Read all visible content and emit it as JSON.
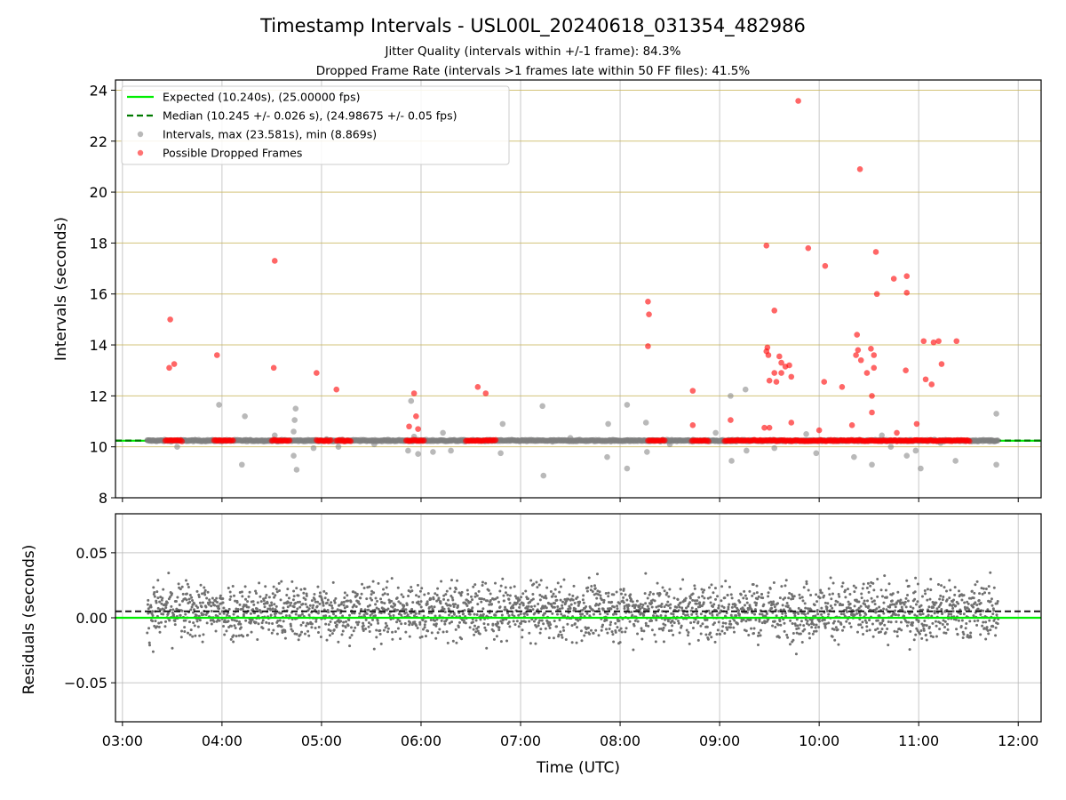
{
  "title": "Timestamp Intervals - USL00L_20240618_031354_482986",
  "subtitle_1": "Jitter Quality (intervals within +/-1 frame): 84.3%",
  "subtitle_2": "Dropped Frame Rate (intervals >1 frames late within 50 FF files): 41.5%",
  "colors": {
    "expected": "#00ee00",
    "median": "#007a00",
    "intervals": "#808080",
    "dropped": "#ff0000",
    "hgrid_top": "#c8b458",
    "grid": "#b0b0b0"
  },
  "chart_data": [
    {
      "type": "scatter",
      "panel": "top",
      "ylabel": "Intervals (seconds)",
      "ylim": [
        8,
        24.4
      ],
      "yticks": [
        8,
        10,
        12,
        14,
        16,
        18,
        20,
        22,
        24
      ],
      "xlim_hours": [
        2.93,
        12.23
      ],
      "grid": true,
      "legend_placement": "upper-left",
      "legend": [
        "Expected (10.240s), (25.00000 fps)",
        "Median (10.245 +/- 0.026 s), (24.98675 +/- 0.05 fps)",
        "Intervals, max (23.581s), min (8.869s)",
        "Possible Dropped Frames"
      ],
      "expected_interval": 10.24,
      "median_interval": 10.245,
      "baseline_range_hours": [
        3.25,
        11.8
      ],
      "dropped_segments_hours": [
        [
          3.43,
          3.6
        ],
        [
          3.92,
          4.12
        ],
        [
          4.5,
          4.68
        ],
        [
          4.95,
          5.1
        ],
        [
          5.15,
          5.3
        ],
        [
          5.85,
          6.03
        ],
        [
          6.45,
          6.75
        ],
        [
          8.28,
          8.45
        ],
        [
          8.72,
          8.9
        ],
        [
          9.05,
          11.52
        ]
      ],
      "series": [
        {
          "name": "Intervals, max (23.581s), min (8.869s)",
          "points": [
            [
              3.97,
              11.65
            ],
            [
              4.23,
              11.2
            ],
            [
              4.2,
              9.3
            ],
            [
              4.53,
              10.45
            ],
            [
              4.72,
              9.65
            ],
            [
              4.72,
              10.6
            ],
            [
              4.73,
              11.05
            ],
            [
              4.74,
              11.5
            ],
            [
              4.75,
              9.1
            ],
            [
              4.92,
              9.95
            ],
            [
              5.17,
              10.0
            ],
            [
              5.53,
              10.1
            ],
            [
              5.87,
              9.85
            ],
            [
              5.9,
              11.8
            ],
            [
              5.97,
              9.72
            ],
            [
              5.93,
              10.4
            ],
            [
              6.12,
              9.8
            ],
            [
              6.22,
              10.55
            ],
            [
              6.3,
              9.85
            ],
            [
              6.8,
              9.75
            ],
            [
              6.82,
              10.9
            ],
            [
              7.23,
              8.87
            ],
            [
              7.22,
              11.6
            ],
            [
              7.32,
              10.2
            ],
            [
              7.87,
              9.6
            ],
            [
              7.88,
              10.9
            ],
            [
              8.07,
              9.15
            ],
            [
              8.07,
              11.65
            ],
            [
              8.26,
              10.95
            ],
            [
              8.27,
              9.8
            ],
            [
              8.73,
              10.2
            ],
            [
              8.96,
              10.55
            ],
            [
              9.11,
              12.0
            ],
            [
              9.12,
              9.45
            ],
            [
              9.26,
              12.25
            ],
            [
              9.27,
              9.85
            ],
            [
              9.55,
              9.95
            ],
            [
              9.87,
              10.5
            ],
            [
              9.97,
              9.75
            ],
            [
              10.35,
              9.6
            ],
            [
              10.53,
              9.3
            ],
            [
              10.63,
              10.45
            ],
            [
              10.72,
              10.0
            ],
            [
              10.88,
              9.65
            ],
            [
              10.97,
              9.85
            ],
            [
              11.02,
              9.15
            ],
            [
              11.22,
              10.15
            ],
            [
              11.37,
              9.45
            ],
            [
              11.78,
              11.3
            ],
            [
              11.78,
              9.3
            ],
            [
              3.55,
              10.0
            ],
            [
              5.05,
              10.3
            ],
            [
              7.5,
              10.35
            ],
            [
              8.5,
              10.1
            ]
          ]
        },
        {
          "name": "Possible Dropped Frames",
          "points": [
            [
              3.47,
              13.1
            ],
            [
              3.48,
              15.0
            ],
            [
              3.52,
              13.25
            ],
            [
              3.95,
              13.6
            ],
            [
              4.52,
              13.1
            ],
            [
              4.53,
              17.3
            ],
            [
              4.95,
              12.9
            ],
            [
              5.15,
              12.25
            ],
            [
              5.88,
              10.8
            ],
            [
              5.93,
              12.1
            ],
            [
              5.95,
              11.2
            ],
            [
              5.97,
              10.7
            ],
            [
              6.57,
              12.35
            ],
            [
              6.65,
              12.1
            ],
            [
              8.28,
              15.7
            ],
            [
              8.29,
              15.2
            ],
            [
              8.28,
              13.95
            ],
            [
              8.73,
              12.2
            ],
            [
              8.73,
              10.85
            ],
            [
              9.11,
              11.05
            ],
            [
              9.47,
              17.9
            ],
            [
              9.47,
              13.75
            ],
            [
              9.48,
              13.9
            ],
            [
              9.49,
              13.6
            ],
            [
              9.5,
              12.6
            ],
            [
              9.55,
              12.9
            ],
            [
              9.55,
              15.35
            ],
            [
              9.57,
              12.55
            ],
            [
              9.6,
              13.55
            ],
            [
              9.62,
              13.3
            ],
            [
              9.62,
              12.9
            ],
            [
              9.66,
              13.15
            ],
            [
              9.7,
              13.2
            ],
            [
              9.72,
              12.75
            ],
            [
              9.79,
              23.58
            ],
            [
              9.89,
              17.8
            ],
            [
              10.06,
              17.1
            ],
            [
              10.05,
              12.55
            ],
            [
              10.23,
              12.35
            ],
            [
              10.37,
              13.6
            ],
            [
              10.38,
              14.4
            ],
            [
              10.39,
              13.8
            ],
            [
              10.41,
              20.9
            ],
            [
              10.42,
              13.4
            ],
            [
              10.48,
              12.9
            ],
            [
              10.52,
              13.85
            ],
            [
              10.53,
              12.0
            ],
            [
              10.53,
              11.35
            ],
            [
              10.55,
              13.6
            ],
            [
              10.55,
              13.1
            ],
            [
              10.57,
              17.65
            ],
            [
              10.58,
              16.0
            ],
            [
              10.75,
              16.6
            ],
            [
              10.88,
              16.7
            ],
            [
              10.88,
              16.05
            ],
            [
              10.87,
              13.0
            ],
            [
              10.98,
              10.9
            ],
            [
              11.05,
              14.15
            ],
            [
              11.07,
              12.65
            ],
            [
              11.13,
              12.45
            ],
            [
              11.15,
              14.1
            ],
            [
              11.2,
              14.15
            ],
            [
              11.23,
              13.25
            ],
            [
              11.38,
              14.15
            ],
            [
              9.45,
              10.75
            ],
            [
              9.5,
              10.75
            ],
            [
              9.72,
              10.95
            ],
            [
              10.0,
              10.65
            ],
            [
              10.33,
              10.85
            ],
            [
              10.78,
              10.55
            ]
          ]
        }
      ]
    },
    {
      "type": "scatter",
      "panel": "bottom",
      "xlabel": "Time (UTC)",
      "ylabel": "Residuals (seconds)",
      "ylim": [
        -0.08,
        0.08
      ],
      "yticks": [
        -0.05,
        0.0,
        0.05
      ],
      "ytick_labels": [
        "−0.05",
        "0.00",
        "0.05"
      ],
      "xlim_hours": [
        2.93,
        12.23
      ],
      "xticks": [
        "03:00",
        "04:00",
        "05:00",
        "06:00",
        "07:00",
        "08:00",
        "09:00",
        "10:00",
        "11:00",
        "12:00"
      ],
      "grid": true,
      "expected_residual": 0.0,
      "median_residual": 0.005,
      "residual_range": [
        -0.075,
        0.075
      ],
      "sample_count": 2600
    }
  ]
}
